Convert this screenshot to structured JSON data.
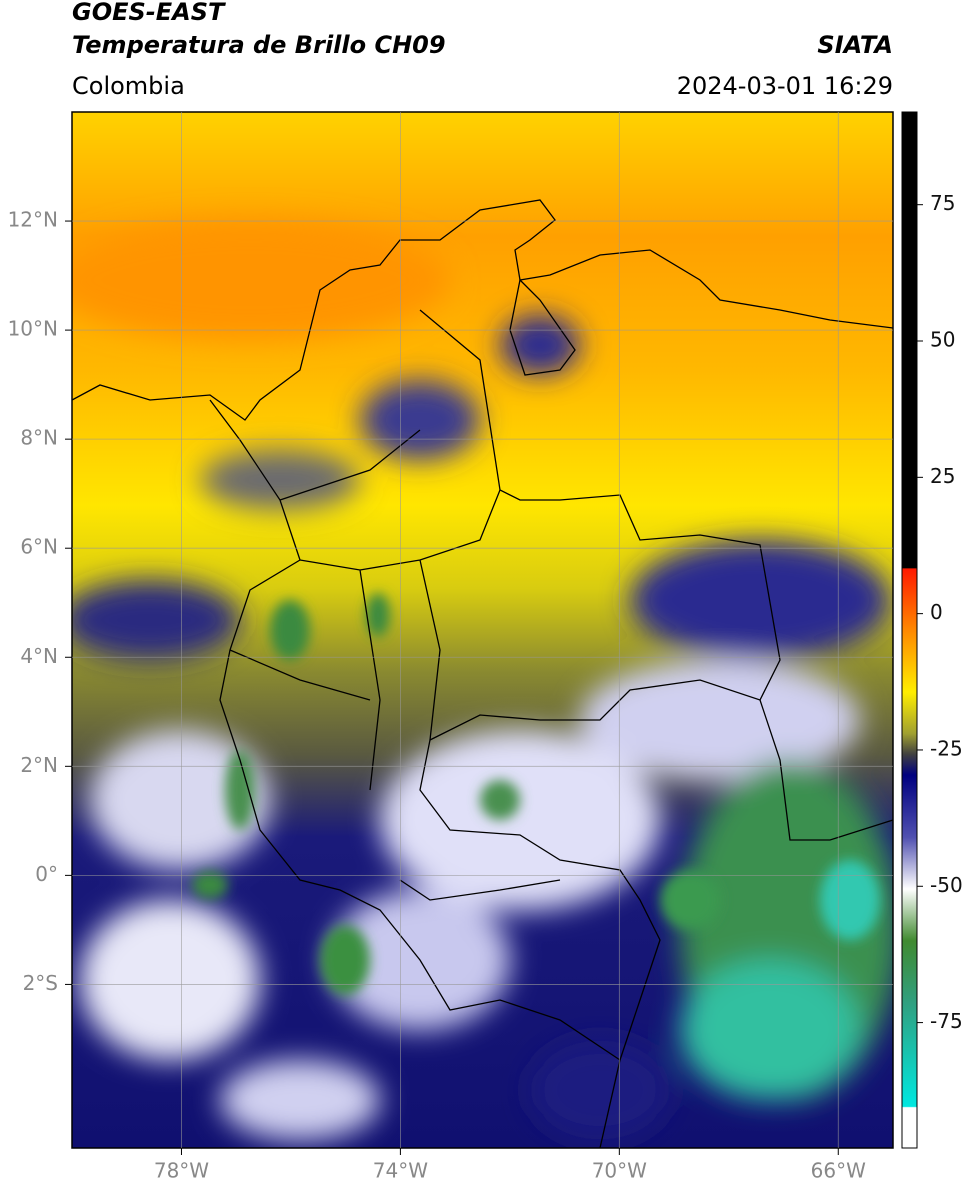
{
  "header": {
    "title_line1": "GOES-EAST",
    "title_line2": "Temperatura de Brillo CH09",
    "source": "SIATA",
    "region": "Colombia",
    "datetime": "2024-03-01 16:29"
  },
  "map": {
    "xlim": [
      -80,
      -65
    ],
    "ylim": [
      -5,
      14
    ],
    "xticks": [
      {
        "value": -78,
        "label": "78°W"
      },
      {
        "value": -74,
        "label": "74°W"
      },
      {
        "value": -70,
        "label": "70°W"
      },
      {
        "value": -66,
        "label": "66°W"
      }
    ],
    "yticks": [
      {
        "value": 12,
        "label": "12°N"
      },
      {
        "value": 10,
        "label": "10°N"
      },
      {
        "value": 8,
        "label": "8°N"
      },
      {
        "value": 6,
        "label": "6°N"
      },
      {
        "value": 4,
        "label": "4°N"
      },
      {
        "value": 2,
        "label": "2°N"
      },
      {
        "value": 0,
        "label": "0°"
      },
      {
        "value": -2,
        "label": "2°S"
      }
    ],
    "grid": true
  },
  "colorbar": {
    "lim": [
      -98,
      92
    ],
    "ticks": [
      75,
      50,
      25,
      0,
      -25,
      -50,
      -75
    ]
  }
}
